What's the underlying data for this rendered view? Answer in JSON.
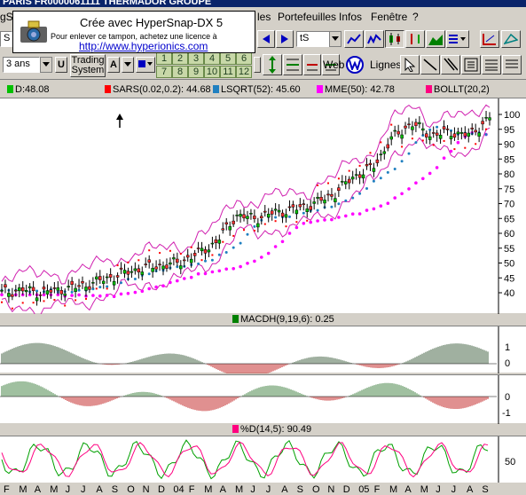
{
  "window": {
    "title": "PARIS    FR0000061111  THERMADOR GROUPE"
  },
  "menu": {
    "items": [
      "gS",
      "les",
      "Portefeuilles",
      "Infos",
      "Fenêtre",
      "?"
    ]
  },
  "watermark": {
    "line1": "Crée avec HyperSnap-DX 5",
    "line2": "Pour enlever ce tampon, achetez une licence à",
    "line3": "http://www.hyperionics.com"
  },
  "toolbar": {
    "symbol_value": "S",
    "symbol2_value": "tS",
    "period_value": "3 ans",
    "u_label": "U",
    "trading_label_1": "Trading",
    "trading_label_2": "System",
    "a_label": "A",
    "numbers": [
      "1",
      "2",
      "3",
      "4",
      "5",
      "6",
      "7",
      "8",
      "9",
      "10",
      "11",
      "12"
    ],
    "web_label": "Web",
    "lignes_label": "Lignes"
  },
  "legend": {
    "d": "D:48.08",
    "sars": "SARS(0.02,0.2): 44.68",
    "lsqrt": "LSQRT(52): 45.60",
    "mme": "MME(50): 42.78",
    "bollt": "BOLLT(20,2)",
    "colors": {
      "d": "#00c000",
      "sars": "#ff0000",
      "lsqrt": "#2080c0",
      "mme": "#ff00ff",
      "bollt": "#ff0080"
    }
  },
  "price_axis": [
    "100",
    "95",
    "90",
    "85",
    "80",
    "75",
    "70",
    "65",
    "60",
    "55",
    "50",
    "45",
    "40"
  ],
  "macd": {
    "label": "MACDH(9,19,6):  0.25",
    "axis1": [
      "1",
      "0"
    ],
    "axis2": [
      "0",
      "-1"
    ]
  },
  "stoch": {
    "label": "%D(14,5): 90.49",
    "axis": [
      "50"
    ]
  },
  "months": [
    "F",
    "M",
    "A",
    "M",
    "J",
    "J",
    "A",
    "S",
    "O",
    "N",
    "D",
    "04",
    "F",
    "M",
    "A",
    "M",
    "J",
    "J",
    "A",
    "S",
    "O",
    "N",
    "D",
    "05",
    "F",
    "M",
    "A",
    "M",
    "J",
    "J",
    "A",
    "S"
  ],
  "chart_data": {
    "type": "candlestick",
    "y_axis_ticks": [
      40,
      45,
      50,
      55,
      60,
      65,
      70,
      75,
      80,
      85,
      90,
      95,
      100
    ],
    "x_tick_labels": [
      "F",
      "M",
      "A",
      "M",
      "J",
      "J",
      "A",
      "S",
      "O",
      "N",
      "D",
      "04",
      "F",
      "M",
      "A",
      "M",
      "J",
      "J",
      "A",
      "S",
      "O",
      "N",
      "D",
      "05",
      "F",
      "M",
      "A",
      "M",
      "J",
      "J",
      "A",
      "S"
    ],
    "indicators": [
      "SARS(0.02,0.2)",
      "LSQRT(52)",
      "MME(50)",
      "BOLLT(20,2)",
      "MACDH(9,19,6)",
      "%D(14,5)"
    ],
    "close_values": [
      40,
      41,
      40,
      41,
      42,
      44,
      46,
      48,
      49,
      50,
      53,
      57,
      66,
      65,
      67,
      68,
      70,
      73,
      79,
      82,
      92,
      97,
      93,
      94,
      93,
      99
    ]
  }
}
